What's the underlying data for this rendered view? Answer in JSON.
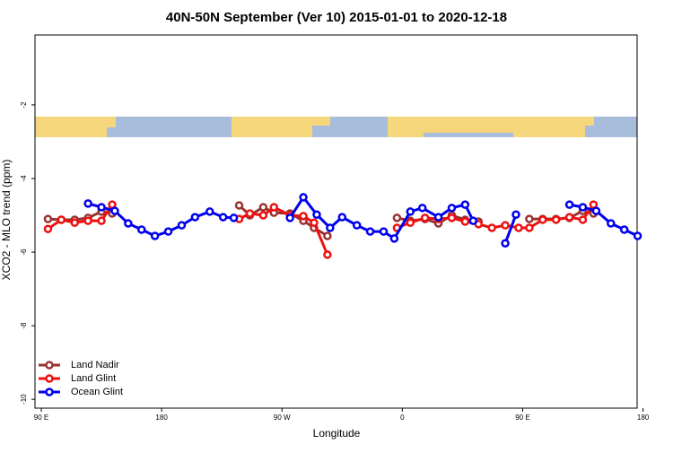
{
  "chart_data": {
    "type": "line",
    "title": "40N-50N September (Ver 10)   2015-01-01 to 2020-12-18",
    "x_label": "Longitude",
    "y_label": "XCO2 - MLO trend (ppm)",
    "xlim": [
      85.3,
      535.6
    ],
    "ylim": [
      -10.24,
      -0.1
    ],
    "xticks": [
      {
        "value": 90,
        "label": "90 E"
      },
      {
        "value": 180,
        "label": "180"
      },
      {
        "value": 270,
        "label": "90 W"
      },
      {
        "value": 360,
        "label": "0"
      },
      {
        "value": 450,
        "label": "90 E"
      },
      {
        "value": 540,
        "label": "180"
      }
    ],
    "yticks": [
      -2,
      -4,
      -6,
      -8,
      -10
    ],
    "legend": "lower left",
    "series": [
      {
        "name": "Land Nadir",
        "color": "#993333",
        "x": [
          95,
          105,
          115,
          125,
          135,
          143,
          null,
          238,
          246,
          256,
          264,
          276,
          286,
          294,
          304,
          null,
          356,
          366,
          377,
          387,
          397,
          407,
          417,
          null,
          455,
          465,
          475,
          485,
          495,
          503
        ],
        "values": [
          -5.1,
          -5.12,
          -5.12,
          -5.07,
          -4.9,
          -4.95,
          null,
          -4.73,
          -5.0,
          -4.78,
          -4.93,
          -4.95,
          -5.15,
          -5.34,
          -5.56,
          null,
          -5.07,
          -5.15,
          -5.1,
          -5.22,
          -5.0,
          -5.12,
          -5.17,
          null,
          -5.1,
          -5.1,
          -5.1,
          -5.07,
          -4.88,
          -4.95
        ]
      },
      {
        "name": "Land Glint",
        "color": "#ee1111",
        "x": [
          95,
          105,
          115,
          125,
          135,
          143,
          null,
          238,
          246,
          256,
          264,
          276,
          286,
          294,
          304,
          null,
          356,
          366,
          377,
          387,
          397,
          407,
          417,
          427,
          437,
          447,
          455,
          465,
          475,
          485,
          495,
          503
        ],
        "values": [
          -5.37,
          -5.12,
          -5.2,
          -5.15,
          -5.15,
          -4.71,
          null,
          -5.1,
          -4.95,
          -5.0,
          -4.78,
          -5.0,
          -5.02,
          -5.2,
          -6.07,
          null,
          -5.34,
          -5.2,
          -5.07,
          -5.1,
          -5.07,
          -5.17,
          -5.24,
          -5.34,
          -5.27,
          -5.34,
          -5.34,
          -5.12,
          -5.12,
          -5.05,
          -5.12,
          -4.71
        ]
      },
      {
        "name": "Ocean Glint",
        "color": "#0000ee",
        "x": [
          125,
          135,
          145,
          155,
          165,
          175,
          185,
          195,
          205,
          216,
          226,
          234,
          null,
          276,
          286,
          296,
          306,
          315,
          326,
          336,
          346,
          354,
          366,
          375,
          387,
          397,
          407,
          413,
          null,
          437,
          445,
          null,
          485,
          495,
          505,
          516,
          526,
          536
        ],
        "values": [
          -4.68,
          -4.78,
          -4.88,
          -5.22,
          -5.39,
          -5.56,
          -5.44,
          -5.27,
          -5.05,
          -4.9,
          -5.05,
          -5.07,
          null,
          -5.07,
          -4.51,
          -4.98,
          -5.34,
          -5.05,
          -5.27,
          -5.44,
          -5.44,
          -5.63,
          -4.9,
          -4.8,
          -5.05,
          -4.8,
          -4.71,
          -5.15,
          null,
          -5.76,
          -4.98,
          null,
          -4.71,
          -4.78,
          -4.88,
          -5.22,
          -5.39,
          -5.56
        ]
      }
    ]
  }
}
